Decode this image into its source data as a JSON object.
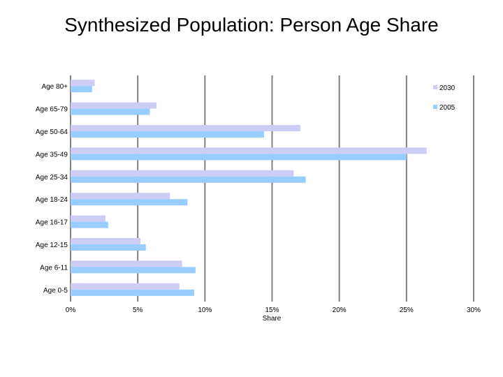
{
  "chart_data": {
    "type": "bar",
    "orientation": "horizontal",
    "title": "Synthesized Population: Person Age Share",
    "xlabel": "Share",
    "ylabel": "",
    "xlim": [
      0,
      30
    ],
    "x_ticks": [
      "0%",
      "5%",
      "10%",
      "15%",
      "20%",
      "25%",
      "30%"
    ],
    "x_tick_values": [
      0,
      5,
      10,
      15,
      20,
      25,
      30
    ],
    "grid": true,
    "legend_position": "top-right",
    "categories": [
      "Age 80+",
      "Age 65-79",
      "Age 50-64",
      "Age 35-49",
      "Age 25-34",
      "Age 18-24",
      "Age 16-17",
      "Age 12-15",
      "Age 6-11",
      "Age 0-5"
    ],
    "series": [
      {
        "name": "2030",
        "color": "#ccccf5",
        "values": [
          1.8,
          6.4,
          17.1,
          26.5,
          16.6,
          7.4,
          2.6,
          5.2,
          8.3,
          8.1
        ]
      },
      {
        "name": "2005",
        "color": "#99ccff",
        "values": [
          1.6,
          5.9,
          14.4,
          25.0,
          17.5,
          8.7,
          2.8,
          5.6,
          9.3,
          9.2
        ]
      }
    ]
  }
}
